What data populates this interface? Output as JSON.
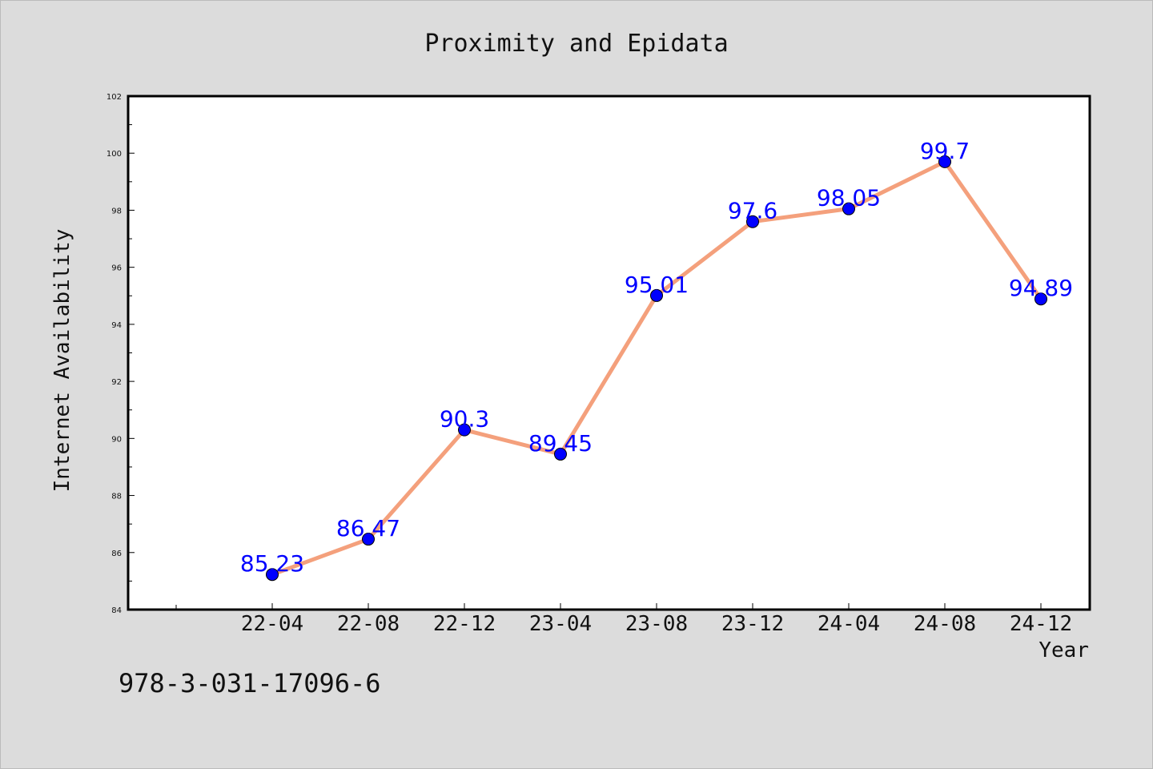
{
  "chart_data": {
    "type": "line",
    "title": "Proximity and Epidata",
    "xlabel": "Year",
    "ylabel": "Internet Availability",
    "categories": [
      "22-04",
      "22-08",
      "22-12",
      "23-04",
      "23-08",
      "23-12",
      "24-04",
      "24-08",
      "24-12"
    ],
    "series": [
      {
        "values": [
          85.23,
          86.47,
          90.3,
          89.45,
          95.01,
          97.6,
          98.05,
          99.7,
          94.89
        ],
        "labels": [
          "85.23",
          "86.47",
          "90.3",
          "89.45",
          "95.01",
          "97.6",
          "98.05",
          "99.7",
          "94.89"
        ],
        "line_color": "#f4a07c",
        "marker_color": "#0000ff"
      }
    ],
    "ylim": [
      84,
      102
    ],
    "yticks": [
      84,
      86,
      88,
      90,
      92,
      94,
      96,
      98,
      100,
      102
    ],
    "ytick_labels": [
      "84",
      "86",
      "88",
      "90",
      "92",
      "94",
      "96",
      "98",
      "100",
      "102"
    ],
    "grid": false,
    "legend": "none",
    "label_color": "#0000ff"
  },
  "footer_text": "978-3-031-17096-6",
  "colors": {
    "background": "#dcdcdc",
    "plot_area": "#ffffff",
    "axis": "#000000"
  }
}
